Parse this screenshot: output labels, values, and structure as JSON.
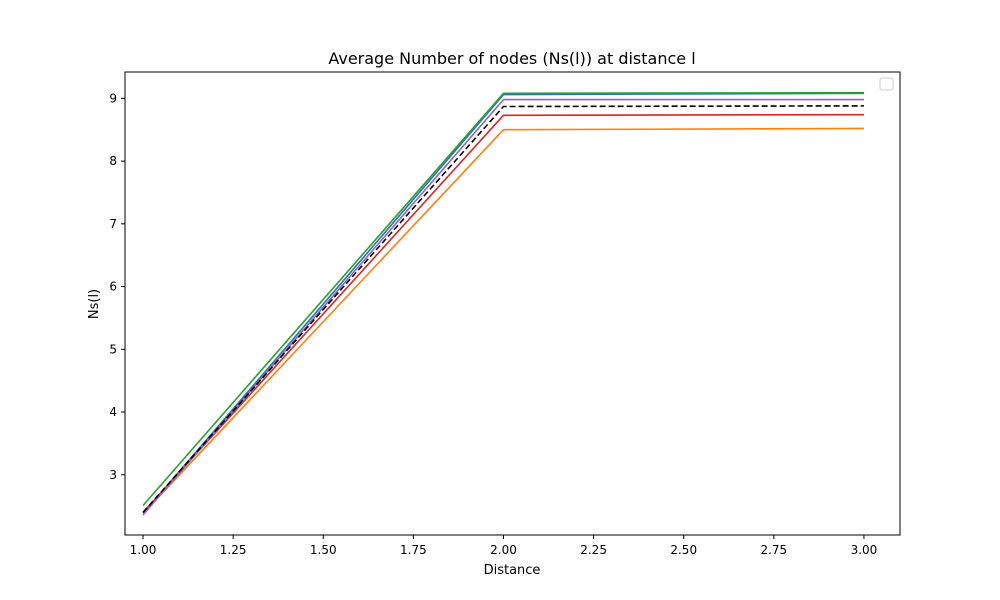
{
  "chart_data": {
    "type": "line",
    "title": "Average Number of nodes (Ns(l)) at distance l",
    "xlabel": "Distance",
    "ylabel": "Ns(l)",
    "xlim": [
      0.95,
      3.1
    ],
    "ylim": [
      2.04,
      9.42
    ],
    "x_ticks": [
      1.0,
      1.25,
      1.5,
      1.75,
      2.0,
      2.25,
      2.5,
      2.75,
      3.0
    ],
    "x_tick_labels": [
      "1.00",
      "1.25",
      "1.50",
      "1.75",
      "2.00",
      "2.25",
      "2.50",
      "2.75",
      "3.00"
    ],
    "y_ticks": [
      3,
      4,
      5,
      6,
      7,
      8,
      9
    ],
    "y_tick_labels": [
      "3",
      "4",
      "5",
      "6",
      "7",
      "8",
      "9"
    ],
    "grid": false,
    "legend": {
      "placement": "top-right",
      "entries": []
    },
    "x": [
      1,
      2,
      3
    ],
    "series": [
      {
        "color": "#1f77b4",
        "dashed": false,
        "values": [
          2.38,
          9.06,
          9.08
        ]
      },
      {
        "color": "#ff7f0e",
        "dashed": false,
        "values": [
          2.38,
          8.5,
          8.52
        ]
      },
      {
        "color": "#d62728",
        "dashed": false,
        "values": [
          2.4,
          8.73,
          8.74
        ]
      },
      {
        "color": "#9467bd",
        "dashed": false,
        "values": [
          2.36,
          8.98,
          8.98
        ]
      },
      {
        "color": "#000000",
        "dashed": true,
        "values": [
          2.4,
          8.87,
          8.88
        ]
      },
      {
        "color": "#2ca02c",
        "dashed": false,
        "values": [
          2.51,
          9.08,
          9.09
        ]
      }
    ]
  }
}
